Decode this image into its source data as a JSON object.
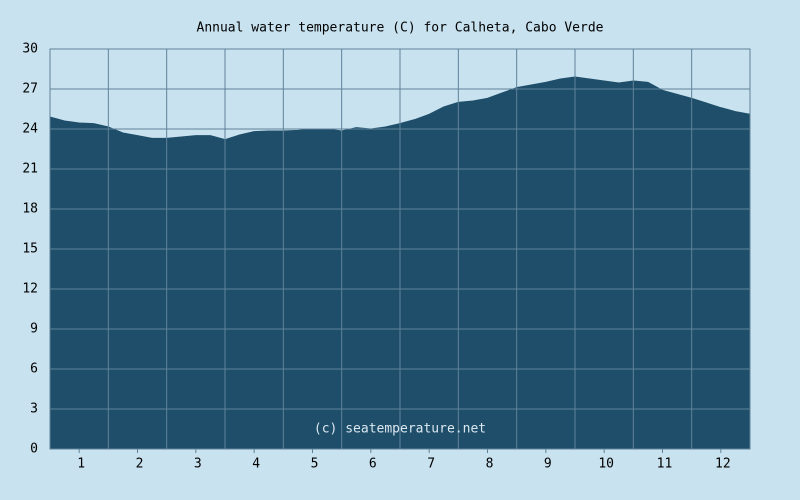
{
  "chart_data": {
    "type": "area",
    "title": "Annual water temperature (C) for Calheta, Cabo Verde",
    "annotation": "(c) seatemperature.net",
    "x": [
      0.5,
      0.75,
      1,
      1.25,
      1.5,
      1.75,
      2,
      2.25,
      2.5,
      2.75,
      3,
      3.25,
      3.5,
      3.75,
      4,
      4.25,
      4.5,
      4.75,
      5,
      5.25,
      5.5,
      5.75,
      6,
      6.25,
      6.5,
      6.75,
      7,
      7.25,
      7.5,
      7.75,
      8,
      8.25,
      8.5,
      8.75,
      9,
      9.25,
      9.5,
      9.75,
      10,
      10.25,
      10.5,
      10.75,
      11,
      11.25,
      11.5,
      11.75,
      12,
      12.25,
      12.5
    ],
    "values": [
      24.9,
      24.6,
      24.45,
      24.4,
      24.15,
      23.7,
      23.5,
      23.3,
      23.3,
      23.4,
      23.5,
      23.5,
      23.2,
      23.55,
      23.8,
      23.85,
      23.85,
      23.9,
      24.0,
      24.0,
      23.85,
      24.1,
      24.0,
      24.15,
      24.4,
      24.7,
      25.1,
      25.65,
      26.0,
      26.1,
      26.3,
      26.7,
      27.1,
      27.3,
      27.5,
      27.75,
      27.9,
      27.75,
      27.6,
      27.45,
      27.6,
      27.5,
      26.9,
      26.6,
      26.3,
      25.95,
      25.6,
      25.3,
      25.1
    ],
    "color": "#1f4e6a",
    "xlim": [
      0.5,
      12.5
    ],
    "xticks": [
      1,
      2,
      3,
      4,
      5,
      6,
      7,
      8,
      9,
      10,
      11,
      12
    ],
    "ylim": [
      0,
      30
    ],
    "yticks": [
      0,
      3,
      6,
      9,
      12,
      15,
      18,
      21,
      24,
      27,
      30
    ],
    "grid": true
  }
}
